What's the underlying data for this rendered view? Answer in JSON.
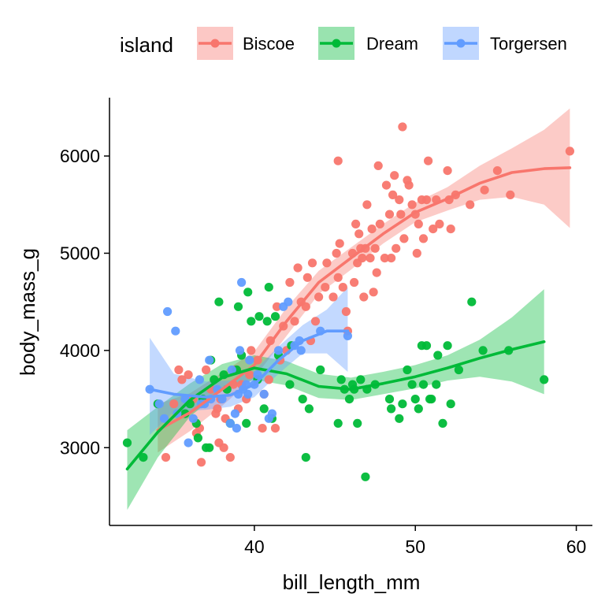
{
  "chart_data": {
    "type": "scatter",
    "title": "",
    "xlabel": "bill_length_mm",
    "ylabel": "body_mass_g",
    "xlim": [
      31.0,
      61.0
    ],
    "ylim": [
      2200,
      6600
    ],
    "x_ticks": [
      40,
      50,
      60
    ],
    "y_ticks": [
      3000,
      4000,
      5000,
      6000
    ],
    "grid": false,
    "legend": {
      "title": "island",
      "placement": "top",
      "entries": [
        "Biscoe",
        "Dream",
        "Torgersen"
      ]
    },
    "series": [
      {
        "name": "Biscoe",
        "color": "#F8766D",
        "fill": "#F8766D",
        "points": [
          [
            34.5,
            2900
          ],
          [
            35.0,
            3450
          ],
          [
            35.3,
            3800
          ],
          [
            35.5,
            3700
          ],
          [
            35.9,
            3750
          ],
          [
            36.2,
            3500
          ],
          [
            36.4,
            3150
          ],
          [
            36.6,
            3200
          ],
          [
            36.7,
            2850
          ],
          [
            37.0,
            3800
          ],
          [
            37.3,
            3600
          ],
          [
            37.6,
            3350
          ],
          [
            37.7,
            3400
          ],
          [
            37.8,
            3050
          ],
          [
            37.9,
            3500
          ],
          [
            38.1,
            3000
          ],
          [
            38.2,
            3300
          ],
          [
            38.5,
            2900
          ],
          [
            38.7,
            3650
          ],
          [
            38.8,
            3800
          ],
          [
            39.0,
            3400
          ],
          [
            39.2,
            3650
          ],
          [
            39.5,
            3500
          ],
          [
            39.7,
            3750
          ],
          [
            39.8,
            4000
          ],
          [
            40.2,
            3900
          ],
          [
            40.5,
            3200
          ],
          [
            40.6,
            3550
          ],
          [
            40.9,
            3700
          ],
          [
            41.0,
            4100
          ],
          [
            41.3,
            3200
          ],
          [
            41.4,
            4450
          ],
          [
            41.6,
            3900
          ],
          [
            41.8,
            4250
          ],
          [
            42.0,
            4000
          ],
          [
            42.2,
            4700
          ],
          [
            42.5,
            4300
          ],
          [
            42.7,
            4850
          ],
          [
            42.9,
            4500
          ],
          [
            43.2,
            4450
          ],
          [
            43.3,
            4750
          ],
          [
            43.5,
            4100
          ],
          [
            43.6,
            4900
          ],
          [
            43.8,
            4300
          ],
          [
            44.0,
            4550
          ],
          [
            44.4,
            4650
          ],
          [
            44.9,
            4550
          ],
          [
            45.1,
            5000
          ],
          [
            45.2,
            4750
          ],
          [
            45.3,
            5100
          ],
          [
            45.5,
            4650
          ],
          [
            45.7,
            4400
          ],
          [
            45.8,
            4200
          ],
          [
            46.1,
            5000
          ],
          [
            46.2,
            4700
          ],
          [
            46.4,
            4900
          ],
          [
            46.5,
            5200
          ],
          [
            46.7,
            4950
          ],
          [
            46.8,
            4550
          ],
          [
            46.9,
            5050
          ],
          [
            47.0,
            5500
          ],
          [
            47.2,
            4950
          ],
          [
            47.3,
            5250
          ],
          [
            47.5,
            5050
          ],
          [
            47.6,
            4800
          ],
          [
            47.8,
            5300
          ],
          [
            48.1,
            4950
          ],
          [
            48.2,
            5700
          ],
          [
            48.4,
            5400
          ],
          [
            48.5,
            4950
          ],
          [
            48.7,
            5800
          ],
          [
            48.8,
            5050
          ],
          [
            49.0,
            5550
          ],
          [
            49.1,
            5400
          ],
          [
            49.2,
            6300
          ],
          [
            49.3,
            5150
          ],
          [
            49.5,
            5750
          ],
          [
            49.8,
            5500
          ],
          [
            50.0,
            5400
          ],
          [
            50.2,
            5300
          ],
          [
            50.4,
            5550
          ],
          [
            50.5,
            5150
          ],
          [
            50.7,
            5550
          ],
          [
            51.1,
            5250
          ],
          [
            51.3,
            5550
          ],
          [
            52.1,
            5550
          ],
          [
            52.2,
            5250
          ],
          [
            52.5,
            5600
          ],
          [
            53.4,
            5500
          ],
          [
            54.3,
            5650
          ],
          [
            55.1,
            5850
          ],
          [
            55.9,
            5600
          ],
          [
            59.6,
            6050
          ],
          [
            45.2,
            5950
          ],
          [
            47.7,
            5900
          ],
          [
            50.8,
            5950
          ],
          [
            52.0,
            5850
          ],
          [
            46.3,
            5300
          ],
          [
            49.6,
            5700
          ],
          [
            51.5,
            5300
          ],
          [
            44.5,
            4900
          ],
          [
            46.6,
            5050
          ],
          [
            48.6,
            5600
          ],
          [
            50.1,
            5000
          ],
          [
            47.4,
            4600
          ]
        ],
        "trend": [
          [
            34.0,
            3180
          ],
          [
            36.0,
            3360
          ],
          [
            38.0,
            3600
          ],
          [
            40.0,
            3850
          ],
          [
            42.0,
            4300
          ],
          [
            44.0,
            4700
          ],
          [
            46.0,
            4950
          ],
          [
            48.0,
            5200
          ],
          [
            50.0,
            5420
          ],
          [
            52.0,
            5560
          ],
          [
            54.0,
            5720
          ],
          [
            56.0,
            5830
          ],
          [
            58.0,
            5870
          ],
          [
            59.6,
            5880
          ]
        ],
        "band": [
          [
            34.0,
            2950,
            3450
          ],
          [
            36.0,
            3170,
            3560
          ],
          [
            38.0,
            3430,
            3770
          ],
          [
            40.0,
            3720,
            3990
          ],
          [
            42.0,
            4150,
            4440
          ],
          [
            44.0,
            4580,
            4820
          ],
          [
            46.0,
            4830,
            5060
          ],
          [
            48.0,
            5100,
            5300
          ],
          [
            50.0,
            5320,
            5520
          ],
          [
            52.0,
            5440,
            5680
          ],
          [
            54.0,
            5550,
            5900
          ],
          [
            56.0,
            5580,
            6080
          ],
          [
            58.0,
            5500,
            6270
          ],
          [
            59.6,
            5260,
            6490
          ]
        ]
      },
      {
        "name": "Dream",
        "color": "#00BA38",
        "fill": "#00BA38",
        "points": [
          [
            32.1,
            3050
          ],
          [
            33.1,
            2900
          ],
          [
            34.0,
            3450
          ],
          [
            35.7,
            3350
          ],
          [
            36.0,
            3450
          ],
          [
            36.4,
            3250
          ],
          [
            36.8,
            3500
          ],
          [
            37.0,
            3000
          ],
          [
            37.2,
            3000
          ],
          [
            37.3,
            3900
          ],
          [
            37.5,
            3700
          ],
          [
            37.8,
            4500
          ],
          [
            38.1,
            3750
          ],
          [
            38.3,
            3600
          ],
          [
            38.9,
            3800
          ],
          [
            39.2,
            3950
          ],
          [
            39.5,
            3250
          ],
          [
            39.6,
            4600
          ],
          [
            39.8,
            4300
          ],
          [
            40.2,
            3700
          ],
          [
            40.3,
            4350
          ],
          [
            40.6,
            3400
          ],
          [
            40.8,
            4300
          ],
          [
            41.1,
            3300
          ],
          [
            41.5,
            3950
          ],
          [
            42.2,
            3650
          ],
          [
            42.3,
            4050
          ],
          [
            43.2,
            2900
          ],
          [
            43.4,
            3400
          ],
          [
            44.1,
            3800
          ],
          [
            45.2,
            3250
          ],
          [
            45.4,
            3700
          ],
          [
            45.6,
            3600
          ],
          [
            45.9,
            3500
          ],
          [
            46.1,
            3650
          ],
          [
            46.4,
            3250
          ],
          [
            46.6,
            3700
          ],
          [
            46.9,
            2700
          ],
          [
            47.0,
            3600
          ],
          [
            48.4,
            3500
          ],
          [
            48.5,
            3400
          ],
          [
            49.0,
            3300
          ],
          [
            49.5,
            3800
          ],
          [
            49.8,
            3650
          ],
          [
            50.2,
            3400
          ],
          [
            50.4,
            4050
          ],
          [
            50.5,
            3650
          ],
          [
            50.7,
            4050
          ],
          [
            50.9,
            3500
          ],
          [
            51.3,
            3650
          ],
          [
            51.4,
            3950
          ],
          [
            51.7,
            3250
          ],
          [
            52.0,
            4050
          ],
          [
            52.7,
            3800
          ],
          [
            53.5,
            4500
          ],
          [
            54.2,
            4000
          ],
          [
            55.8,
            4000
          ],
          [
            58.0,
            3700
          ],
          [
            46.2,
            3600
          ],
          [
            47.5,
            3650
          ],
          [
            49.2,
            3450
          ],
          [
            50.0,
            3500
          ],
          [
            51.0,
            3500
          ],
          [
            52.2,
            3450
          ],
          [
            39.0,
            4450
          ],
          [
            40.9,
            4650
          ],
          [
            41.3,
            4350
          ],
          [
            36.5,
            3100
          ],
          [
            38.5,
            3250
          ],
          [
            43.0,
            3500
          ]
        ],
        "trend": [
          [
            32.1,
            2780
          ],
          [
            34.0,
            3160
          ],
          [
            36.0,
            3490
          ],
          [
            38.0,
            3720
          ],
          [
            40.0,
            3820
          ],
          [
            42.0,
            3760
          ],
          [
            44.0,
            3630
          ],
          [
            46.0,
            3600
          ],
          [
            48.0,
            3660
          ],
          [
            50.0,
            3730
          ],
          [
            52.0,
            3820
          ],
          [
            54.0,
            3920
          ],
          [
            56.0,
            4010
          ],
          [
            58.0,
            4090
          ]
        ],
        "band": [
          [
            32.1,
            2360,
            3180
          ],
          [
            34.0,
            2900,
            3420
          ],
          [
            36.0,
            3320,
            3660
          ],
          [
            38.0,
            3590,
            3860
          ],
          [
            40.0,
            3700,
            3950
          ],
          [
            42.0,
            3640,
            3890
          ],
          [
            44.0,
            3510,
            3760
          ],
          [
            46.0,
            3490,
            3720
          ],
          [
            48.0,
            3550,
            3780
          ],
          [
            50.0,
            3610,
            3850
          ],
          [
            52.0,
            3690,
            3950
          ],
          [
            54.0,
            3730,
            4110
          ],
          [
            56.0,
            3680,
            4340
          ],
          [
            58.0,
            3550,
            4630
          ]
        ]
      },
      {
        "name": "Torgersen",
        "color": "#619CFF",
        "fill": "#619CFF",
        "points": [
          [
            33.5,
            3600
          ],
          [
            34.1,
            3450
          ],
          [
            34.4,
            3300
          ],
          [
            34.6,
            4400
          ],
          [
            35.1,
            4200
          ],
          [
            35.2,
            3350
          ],
          [
            35.7,
            3500
          ],
          [
            36.2,
            3300
          ],
          [
            36.6,
            3700
          ],
          [
            36.7,
            3450
          ],
          [
            37.2,
            3900
          ],
          [
            37.3,
            3500
          ],
          [
            37.7,
            3600
          ],
          [
            38.0,
            3500
          ],
          [
            38.5,
            3250
          ],
          [
            38.6,
            3800
          ],
          [
            38.8,
            3350
          ],
          [
            39.0,
            3550
          ],
          [
            39.1,
            4000
          ],
          [
            39.2,
            4700
          ],
          [
            39.3,
            3600
          ],
          [
            39.5,
            3650
          ],
          [
            39.6,
            3550
          ],
          [
            39.7,
            3900
          ],
          [
            40.2,
            3750
          ],
          [
            40.6,
            3550
          ],
          [
            40.9,
            3300
          ],
          [
            41.1,
            3350
          ],
          [
            41.5,
            4000
          ],
          [
            41.8,
            4450
          ],
          [
            42.1,
            4500
          ],
          [
            42.5,
            4050
          ],
          [
            42.8,
            4100
          ],
          [
            42.9,
            4000
          ],
          [
            44.1,
            4200
          ],
          [
            45.8,
            4150
          ],
          [
            38.9,
            3200
          ],
          [
            36.9,
            3450
          ],
          [
            35.9,
            3050
          ],
          [
            40.0,
            3650
          ]
        ],
        "trend": [
          [
            33.5,
            3600
          ],
          [
            35.0,
            3550
          ],
          [
            37.0,
            3520
          ],
          [
            38.5,
            3540
          ],
          [
            40.0,
            3650
          ],
          [
            41.5,
            3900
          ],
          [
            43.0,
            4100
          ],
          [
            44.5,
            4200
          ],
          [
            45.8,
            4200
          ]
        ],
        "band": [
          [
            33.5,
            3130,
            4130
          ],
          [
            35.0,
            3370,
            3760
          ],
          [
            37.0,
            3390,
            3680
          ],
          [
            38.5,
            3420,
            3690
          ],
          [
            40.0,
            3520,
            3790
          ],
          [
            41.5,
            3760,
            4040
          ],
          [
            43.0,
            3970,
            4260
          ],
          [
            44.5,
            3970,
            4420
          ],
          [
            45.8,
            3780,
            4650
          ]
        ]
      }
    ]
  }
}
